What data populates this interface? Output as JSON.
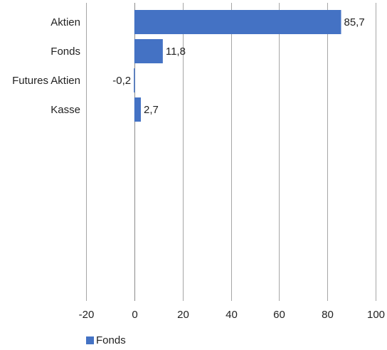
{
  "chart_data": {
    "type": "bar",
    "orientation": "horizontal",
    "categories": [
      "Aktien",
      "Fonds",
      "Futures Aktien",
      "Kasse"
    ],
    "series": [
      {
        "name": "Fonds",
        "values": [
          85.7,
          11.8,
          -0.2,
          2.7
        ],
        "color": "#4472c4"
      }
    ],
    "data_labels": [
      "85,7",
      "11,8",
      "-0,2",
      "2,7"
    ],
    "xlim": [
      -20,
      100
    ],
    "xticks": [
      -20,
      0,
      20,
      40,
      60,
      80,
      100
    ],
    "xtick_labels": [
      "-20",
      "0",
      "20",
      "40",
      "60",
      "80",
      "100"
    ],
    "grid": true,
    "legend_position": "bottom-left",
    "title": "",
    "xlabel": "",
    "ylabel": ""
  }
}
